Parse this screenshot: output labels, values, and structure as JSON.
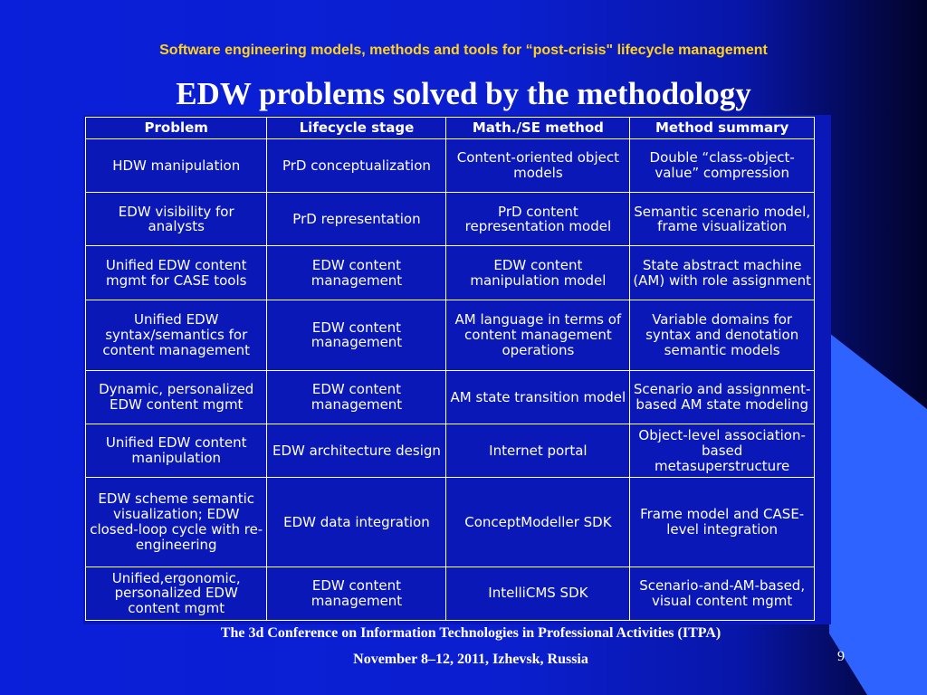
{
  "slide": {
    "subtitle": "Software engineering models, methods and tools for  “post-crisis\" lifecycle management",
    "title": "EDW problems solved by the methodology",
    "footer_line1": "The 3d Conference on Information Technologies in Professional Activities (ITPA)",
    "footer_line2": "November 8–12, 2011, Izhevsk, Russia",
    "page_number": "9",
    "colors": {
      "background": "#0a1fd9",
      "subtitle": "#ffd21f",
      "accent_shape": "#2f63ff"
    }
  },
  "table": {
    "headers": [
      "Problem",
      "Lifecycle stage",
      "Math./SE method",
      "Method summary"
    ],
    "rows": [
      [
        "HDW manipulation",
        "PrD conceptualization",
        "Content-oriented object models",
        "Double “class-object-value” compression"
      ],
      [
        "EDW visibility for analysts",
        "PrD representation",
        "PrD content representation model",
        "Semantic scenario model, frame visualization"
      ],
      [
        "Unified EDW content mgmt for CASE tools",
        "EDW content management",
        "EDW content manipulation model",
        "State abstract machine (AM) with role assignment"
      ],
      [
        "Unified EDW syntax/semantics for content management",
        "EDW content management",
        "AM language in terms of content management operations",
        "Variable domains for syntax and denotation semantic models"
      ],
      [
        "Dynamic, personalized EDW content mgmt",
        "EDW content management",
        "AM state transition model",
        "Scenario and assignment-based AM state modeling"
      ],
      [
        "Unified EDW content manipulation",
        "EDW architecture design",
        "Internet portal",
        "Object-level association-based metasuperstructure"
      ],
      [
        "EDW scheme semantic visualization; EDW closed-loop cycle with re-engineering",
        "EDW data integration",
        "ConceptModeller SDK",
        "Frame model and CASE-level integration"
      ],
      [
        "Unified,ergonomic, personalized EDW content mgmt",
        "EDW content management",
        "IntelliCMS SDK",
        "Scenario-and-AM-based, visual content mgmt"
      ]
    ]
  }
}
